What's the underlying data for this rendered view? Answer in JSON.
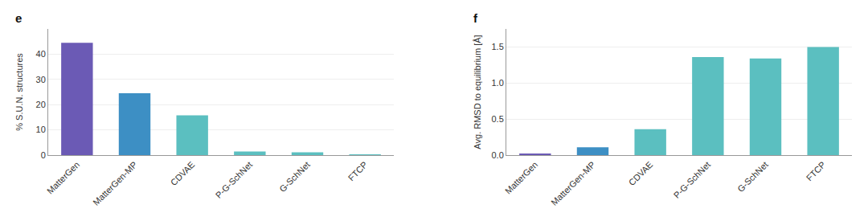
{
  "chart_data": [
    {
      "type": "bar",
      "title": "e",
      "categories": [
        "MatterGen",
        "MatterGen-MP",
        "CDVAE",
        "P-G-SchNet",
        "G-SchNet",
        "FTCP"
      ],
      "values": [
        44.5,
        24.5,
        15.8,
        1.4,
        1.1,
        0.03
      ],
      "colors": [
        "#6b5ab5",
        "#3d8fc4",
        "#5bbfc0",
        "#5bbfc0",
        "#5bbfc0",
        "#5bbfc0"
      ],
      "ylabel": "% S.U.N. structures",
      "ylim": [
        0,
        50
      ],
      "yticks": [
        0,
        10,
        20,
        30,
        40
      ],
      "grid": true
    },
    {
      "type": "bar",
      "title": "f",
      "categories": [
        "MatterGen",
        "MatterGen-MP",
        "CDVAE",
        "P-G-SchNet",
        "G-SchNet",
        "FTCP"
      ],
      "values": [
        0.022,
        0.11,
        0.36,
        1.36,
        1.34,
        1.5
      ],
      "colors": [
        "#6b5ab5",
        "#3d8fc4",
        "#5bbfc0",
        "#5bbfc0",
        "#5bbfc0",
        "#5bbfc0"
      ],
      "ylabel": "Avg. RMSD to equilibrium [Å]",
      "ylim": [
        0,
        1.75
      ],
      "yticks": [
        {
          "value": 0,
          "label": "0.0"
        },
        0.5,
        {
          "value": 1.0,
          "label": "1.0"
        },
        1.5
      ],
      "grid": true
    }
  ]
}
